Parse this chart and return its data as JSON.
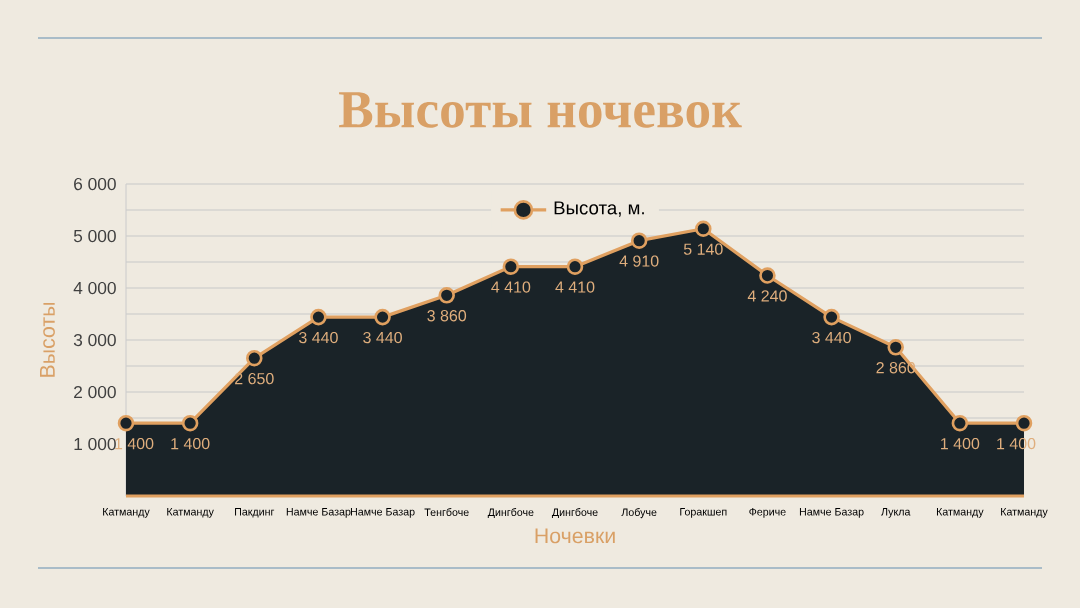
{
  "chart_data": {
    "type": "area",
    "title": "Высоты ночевок",
    "xlabel": "Ночевки",
    "ylabel": "Высоты",
    "categories": [
      "Катманду",
      "Катманду",
      "Пакдинг",
      "Намче Базар",
      "Намче Базар",
      "Тенгбоче",
      "Дингбоче",
      "Дингбоче",
      "Лобуче",
      "Горакшеп",
      "Фериче",
      "Намче Базар",
      "Лукла",
      "Катманду",
      "Катманду"
    ],
    "series": [
      {
        "name": "Высота, м.",
        "color": "#1a2328",
        "values": [
          1400,
          1400,
          2650,
          3440,
          3440,
          3860,
          4410,
          4410,
          4910,
          5140,
          4240,
          3440,
          2860,
          1400,
          1400
        ],
        "value_labels": [
          "1 400",
          "1 400",
          "2 650",
          "3 440",
          "3 440",
          "3 860",
          "4 410",
          "4 410",
          "4 910",
          "5 140",
          "4 240",
          "3 440",
          "2 860",
          "1 400",
          "1 400"
        ]
      }
    ],
    "ylim": [
      0,
      6000
    ],
    "yticks": [
      {
        "value": 1000,
        "label": "1 000"
      },
      {
        "value": 1500,
        "label": null
      },
      {
        "value": 2000,
        "label": "2 000"
      },
      {
        "value": 2500,
        "label": null
      },
      {
        "value": 3000,
        "label": "3 000"
      },
      {
        "value": 3500,
        "label": null
      },
      {
        "value": 4000,
        "label": "4 000"
      },
      {
        "value": 4500,
        "label": null
      },
      {
        "value": 5000,
        "label": "5 000"
      },
      {
        "value": 5500,
        "label": null
      },
      {
        "value": 6000,
        "label": "6 000"
      }
    ],
    "grid": "y",
    "legend": "top",
    "marker": "circle"
  }
}
